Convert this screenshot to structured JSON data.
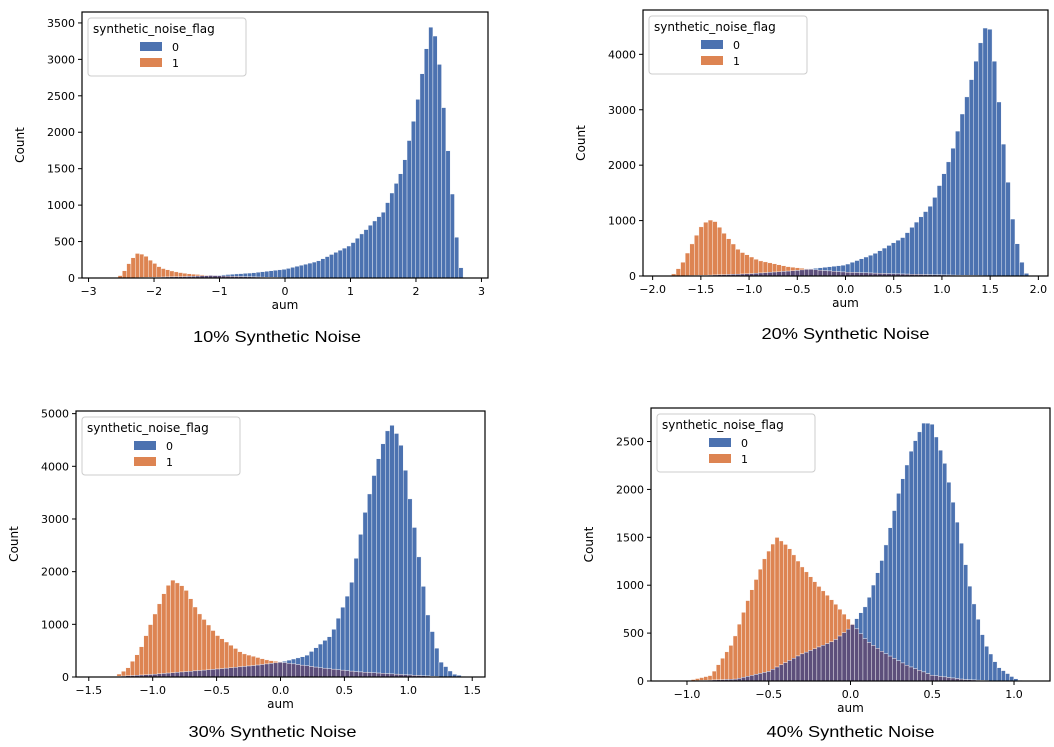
{
  "colors": {
    "series_0": "#4c72b0",
    "series_1": "#dd8452",
    "overlap": "#5d4f7b",
    "frame": "#000000"
  },
  "chart_data": [
    {
      "type": "bar",
      "caption": "10% Synthetic Noise",
      "xlabel": "aum",
      "ylabel": "Count",
      "xlim": [
        -3.1,
        3.1
      ],
      "ylim": [
        0,
        3650
      ],
      "xticks": [
        -3,
        -2,
        -1,
        0,
        1,
        2,
        3
      ],
      "xtick_labels": [
        "−3",
        "−2",
        "−1",
        "0",
        "1",
        "2",
        "3"
      ],
      "yticks": [
        0,
        500,
        1000,
        1500,
        2000,
        2500,
        3000,
        3500
      ],
      "legend": {
        "title": "synthetic_noise_flag",
        "entries": [
          "0",
          "1"
        ],
        "placement": "top-left"
      },
      "grid": false,
      "series": [
        {
          "name": "0",
          "x": [
            -2.5,
            -2.0,
            -1.5,
            -1.0,
            -0.5,
            0.0,
            0.5,
            1.0,
            1.5,
            1.8,
            2.0,
            2.15,
            2.25,
            2.35,
            2.45,
            2.55,
            2.65,
            2.72
          ],
          "values": [
            0,
            10,
            20,
            40,
            70,
            120,
            230,
            450,
            900,
            1500,
            2300,
            3100,
            3550,
            3000,
            2100,
            1200,
            300,
            0
          ]
        },
        {
          "name": "1",
          "x": [
            -2.55,
            -2.45,
            -2.35,
            -2.25,
            -2.15,
            -2.05,
            -1.9,
            -1.7,
            -1.5,
            -1.2,
            -1.0,
            -0.5,
            0.0
          ],
          "values": [
            0,
            100,
            250,
            340,
            320,
            240,
            140,
            90,
            60,
            40,
            30,
            15,
            5
          ]
        }
      ]
    },
    {
      "type": "bar",
      "caption": "20% Synthetic Noise",
      "xlabel": "aum",
      "ylabel": "Count",
      "xlim": [
        -2.1,
        2.1
      ],
      "ylim": [
        0,
        4800
      ],
      "xticks": [
        -2.0,
        -1.5,
        -1.0,
        -0.5,
        0.0,
        0.5,
        1.0,
        1.5,
        2.0
      ],
      "xtick_labels": [
        "−2.0",
        "−1.5",
        "−1.0",
        "−0.5",
        "0.0",
        "0.5",
        "1.0",
        "1.5",
        "2.0"
      ],
      "yticks": [
        0,
        1000,
        2000,
        3000,
        4000
      ],
      "legend": {
        "title": "synthetic_noise_flag",
        "entries": [
          "0",
          "1"
        ],
        "placement": "top-left"
      },
      "grid": false,
      "series": [
        {
          "name": "0",
          "x": [
            -1.9,
            -1.5,
            -1.0,
            -0.5,
            0.0,
            0.3,
            0.6,
            0.9,
            1.1,
            1.3,
            1.4,
            1.48,
            1.55,
            1.65,
            1.75,
            1.85,
            1.9
          ],
          "values": [
            0,
            10,
            40,
            100,
            200,
            400,
            700,
            1300,
            2200,
            3500,
            4200,
            4650,
            3800,
            2200,
            800,
            100,
            0
          ]
        },
        {
          "name": "1",
          "x": [
            -1.8,
            -1.7,
            -1.6,
            -1.5,
            -1.42,
            -1.35,
            -1.25,
            -1.1,
            -0.9,
            -0.6,
            -0.3,
            0.0,
            0.5,
            1.0,
            1.5
          ],
          "values": [
            0,
            200,
            550,
            880,
            1020,
            980,
            750,
            450,
            280,
            170,
            110,
            70,
            40,
            20,
            5
          ]
        }
      ]
    },
    {
      "type": "bar",
      "caption": "30% Synthetic Noise",
      "xlabel": "aum",
      "ylabel": "Count",
      "xlim": [
        -1.6,
        1.6
      ],
      "ylim": [
        0,
        5050
      ],
      "xticks": [
        -1.5,
        -1.0,
        -0.5,
        0.0,
        0.5,
        1.0,
        1.5
      ],
      "xtick_labels": [
        "−1.5",
        "−1.0",
        "−0.5",
        "0.0",
        "0.5",
        "1.0",
        "1.5"
      ],
      "yticks": [
        0,
        1000,
        2000,
        3000,
        4000,
        5000
      ],
      "legend": {
        "title": "synthetic_noise_flag",
        "entries": [
          "0",
          "1"
        ],
        "placement": "top-left"
      },
      "grid": false,
      "series": [
        {
          "name": "0",
          "x": [
            -1.35,
            -1.0,
            -0.5,
            -0.2,
            0.0,
            0.2,
            0.4,
            0.55,
            0.65,
            0.75,
            0.83,
            0.88,
            0.95,
            1.05,
            1.15,
            1.25,
            1.35,
            1.45
          ],
          "values": [
            0,
            50,
            150,
            220,
            280,
            400,
            800,
            1700,
            3000,
            4000,
            4650,
            4800,
            4350,
            2800,
            1200,
            300,
            60,
            0
          ]
        },
        {
          "name": "1",
          "x": [
            -1.3,
            -1.2,
            -1.1,
            -1.0,
            -0.9,
            -0.85,
            -0.75,
            -0.65,
            -0.5,
            -0.3,
            -0.1,
            0.1,
            0.3,
            0.6,
            1.0,
            1.3
          ],
          "values": [
            0,
            150,
            500,
            1100,
            1650,
            1850,
            1700,
            1250,
            800,
            450,
            320,
            250,
            180,
            100,
            40,
            0
          ]
        }
      ]
    },
    {
      "type": "bar",
      "caption": "40% Synthetic Noise",
      "xlabel": "aum",
      "ylabel": "Count",
      "xlim": [
        -1.22,
        1.22
      ],
      "ylim": [
        0,
        2850
      ],
      "xticks": [
        -1.0,
        -0.5,
        0.0,
        0.5,
        1.0
      ],
      "xtick_labels": [
        "−1.0",
        "−0.5",
        "0.0",
        "0.5",
        "1.0"
      ],
      "yticks": [
        0,
        500,
        1000,
        1500,
        2000,
        2500
      ],
      "legend": {
        "title": "synthetic_noise_flag",
        "entries": [
          "0",
          "1"
        ],
        "placement": "top-left"
      },
      "grid": false,
      "series": [
        {
          "name": "0",
          "x": [
            -1.0,
            -0.7,
            -0.5,
            -0.3,
            -0.1,
            0.0,
            0.1,
            0.2,
            0.3,
            0.38,
            0.45,
            0.5,
            0.58,
            0.66,
            0.74,
            0.82,
            0.9,
            1.0,
            1.05
          ],
          "values": [
            0,
            20,
            100,
            280,
            420,
            560,
            800,
            1300,
            2000,
            2450,
            2700,
            2680,
            2250,
            1600,
            900,
            400,
            150,
            30,
            0
          ]
        },
        {
          "name": "1",
          "x": [
            -1.0,
            -0.85,
            -0.72,
            -0.62,
            -0.52,
            -0.45,
            -0.38,
            -0.3,
            -0.2,
            -0.1,
            0.0,
            0.1,
            0.2,
            0.35,
            0.5,
            0.7,
            0.9
          ],
          "values": [
            0,
            60,
            400,
            880,
            1300,
            1500,
            1400,
            1200,
            1000,
            820,
            620,
            420,
            300,
            160,
            60,
            15,
            0
          ]
        }
      ]
    }
  ]
}
